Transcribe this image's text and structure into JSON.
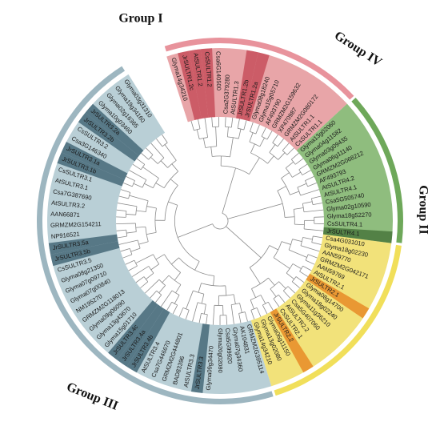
{
  "figure": {
    "colors": {
      "group_I": "#e8a5a8",
      "group_I_dark": "#c9545f",
      "group_I_ring": "#e8939c",
      "group_II": "#f2e27a",
      "group_II_dark": "#e8902b",
      "group_II_ring": "#f1df5a",
      "group_III": "#b9cfd6",
      "group_III_dark": "#4d6e7d",
      "group_III_ring": "#9db6c0",
      "group_IV": "#8fbd7e",
      "group_IV_dark": "#4d7a40",
      "group_IV_ring": "#6ea85a",
      "branch": "#8a8a8a"
    },
    "groups": [
      {
        "label": "Group I",
        "color_key": "group_I"
      },
      {
        "label": "Group IV",
        "color_key": "group_IV"
      },
      {
        "label": "Group II",
        "color_key": "group_II"
      },
      {
        "label": "Group III",
        "color_key": "group_III"
      }
    ],
    "leaves": [
      {
        "label": "Glyma14g34210",
        "group": "I",
        "dark": false
      },
      {
        "label": "JrSULTR1.2c",
        "group": "I",
        "dark": true
      },
      {
        "label": "AtSULTR1.2",
        "group": "I",
        "dark": true
      },
      {
        "label": "CsSULTR1.2",
        "group": "I",
        "dark": true
      },
      {
        "label": "Csa6G140500",
        "group": "I",
        "dark": false
      },
      {
        "label": "Csa2G379280",
        "group": "I",
        "dark": false
      },
      {
        "label": "AtSULTR1.3",
        "group": "I",
        "dark": false
      },
      {
        "label": "JrSULTR1.2b",
        "group": "I",
        "dark": true
      },
      {
        "label": "JrSULTR1.2a",
        "group": "I",
        "dark": true
      },
      {
        "label": "Glyma08g18240",
        "group": "I",
        "dark": false
      },
      {
        "label": "Glyma15g05710",
        "group": "I",
        "dark": false
      },
      {
        "label": "AF493790",
        "group": "I",
        "dark": false
      },
      {
        "label": "GRMZM2G159632",
        "group": "I",
        "dark": false
      },
      {
        "label": "XP470987",
        "group": "I",
        "dark": false
      },
      {
        "label": "GRMZM2G080172",
        "group": "I",
        "dark": false
      },
      {
        "label": "AtSULTR1.1",
        "group": "I",
        "dark": false
      },
      {
        "label": "CsSULTR1.1",
        "group": "I",
        "dark": false
      },
      {
        "label": "Glyma13g02060",
        "group": "IV",
        "dark": false
      },
      {
        "label": "Glyma04g11582",
        "group": "IV",
        "dark": false
      },
      {
        "label": "Glyma03g09435",
        "group": "IV",
        "dark": false
      },
      {
        "label": "Glyma06g11140",
        "group": "IV",
        "dark": false
      },
      {
        "label": "GRMZM2G068212",
        "group": "IV",
        "dark": false
      },
      {
        "label": "AF493793",
        "group": "IV",
        "dark": false
      },
      {
        "label": "AtSULTR4.2",
        "group": "IV",
        "dark": false
      },
      {
        "label": "AtSULTR4.1",
        "group": "IV",
        "dark": false
      },
      {
        "label": "Csa5G505740",
        "group": "IV",
        "dark": false
      },
      {
        "label": "Glyma02g10590",
        "group": "IV",
        "dark": false
      },
      {
        "label": "Glyma18g52270",
        "group": "IV",
        "dark": false
      },
      {
        "label": "CsSULTR4.1",
        "group": "IV",
        "dark": false
      },
      {
        "label": "JrSULTR4.1",
        "group": "IV",
        "dark": true
      },
      {
        "label": "Csa4G031010",
        "group": "II",
        "dark": false
      },
      {
        "label": "Glyma18g02230",
        "group": "II",
        "dark": false
      },
      {
        "label": "AAN59770",
        "group": "II",
        "dark": false
      },
      {
        "label": "GRMZM2G042171",
        "group": "II",
        "dark": false
      },
      {
        "label": "AAN59769",
        "group": "II",
        "dark": false
      },
      {
        "label": "AtSULTR2.1",
        "group": "II",
        "dark": false
      },
      {
        "label": "JrSULTR2.1",
        "group": "II",
        "dark": true
      },
      {
        "label": "Glyma08g14700",
        "group": "II",
        "dark": false
      },
      {
        "label": "Glyma18g02240",
        "group": "II",
        "dark": false
      },
      {
        "label": "Glyma11g36210",
        "group": "II",
        "dark": false
      },
      {
        "label": "Csa5G407060",
        "group": "II",
        "dark": false
      },
      {
        "label": "AtSULTR2.2",
        "group": "II",
        "dark": false
      },
      {
        "label": "CsSULTR2.1",
        "group": "II",
        "dark": false
      },
      {
        "label": "JrSULTR2.2",
        "group": "II",
        "dark": true
      },
      {
        "label": "Glyma06g11150",
        "group": "II",
        "dark": false
      },
      {
        "label": "Glyma13g02080",
        "group": "II",
        "dark": false
      },
      {
        "label": "Glyma14g34210",
        "group": "II",
        "dark": false
      },
      {
        "label": "GRMZM2G395114",
        "group": "III",
        "dark": false
      },
      {
        "label": "AK104831",
        "group": "III",
        "dark": false
      },
      {
        "label": "Glyma07g34360",
        "group": "III",
        "dark": false
      },
      {
        "label": "Csa5G99920",
        "group": "III",
        "dark": false
      },
      {
        "label": "Glyma20g02080",
        "group": "III",
        "dark": false
      },
      {
        "label": "Glyma09g34470",
        "group": "III",
        "dark": false
      },
      {
        "label": "JrSULTR3.3",
        "group": "III",
        "dark": true
      },
      {
        "label": "AtSULTR3.3",
        "group": "III",
        "dark": false
      },
      {
        "label": "BAD83396",
        "group": "III",
        "dark": false
      },
      {
        "label": "GRMZM2G444801",
        "group": "III",
        "dark": false
      },
      {
        "label": "Csa7G446670",
        "group": "III",
        "dark": false
      },
      {
        "label": "AtSULTR3.4",
        "group": "III",
        "dark": false
      },
      {
        "label": "JrSULTR3.4b",
        "group": "III",
        "dark": true
      },
      {
        "label": "JrSULTR3.4a",
        "group": "III",
        "dark": true
      },
      {
        "label": "JrSULTR3.4c",
        "group": "III",
        "dark": true
      },
      {
        "label": "Glyma15g01710",
        "group": "III",
        "dark": false
      },
      {
        "label": "Glyma13g43670",
        "group": "III",
        "dark": false
      },
      {
        "label": "Glyma09g06090",
        "group": "III",
        "dark": false
      },
      {
        "label": "GRMZM2G118013",
        "group": "III",
        "dark": false
      },
      {
        "label": "NM195270",
        "group": "III",
        "dark": false
      },
      {
        "label": "Glyma07g00840",
        "group": "III",
        "dark": false
      },
      {
        "label": "Glyma07g09710",
        "group": "III",
        "dark": false
      },
      {
        "label": "Glyma08g21350",
        "group": "III",
        "dark": false
      },
      {
        "label": "CsSULTR3.5",
        "group": "III",
        "dark": false
      },
      {
        "label": "JrSULTR3.5b",
        "group": "III",
        "dark": true
      },
      {
        "label": "JrSULTR3.5a",
        "group": "III",
        "dark": true
      },
      {
        "label": "NP916521",
        "group": "III",
        "dark": false
      },
      {
        "label": "GRMZM2G154211",
        "group": "III",
        "dark": false
      },
      {
        "label": "AAN66871",
        "group": "III",
        "dark": false
      },
      {
        "label": "AtSULTR3.2",
        "group": "III",
        "dark": false
      },
      {
        "label": "Csa7G387690",
        "group": "III",
        "dark": false
      },
      {
        "label": "AtSULTR3.1",
        "group": "III",
        "dark": false
      },
      {
        "label": "CsSULTR3.1",
        "group": "III",
        "dark": false
      },
      {
        "label": "JrSULTR3.1b",
        "group": "III",
        "dark": true
      },
      {
        "label": "JrSULTR3.1a",
        "group": "III",
        "dark": true
      },
      {
        "label": "Csa3G146340",
        "group": "III",
        "dark": false
      },
      {
        "label": "CsSULTR3.2",
        "group": "III",
        "dark": false
      },
      {
        "label": "JrSULTR3.2b",
        "group": "III",
        "dark": true
      },
      {
        "label": "JrSULTR3.2a",
        "group": "III",
        "dark": true
      },
      {
        "label": "Glyma10g03460",
        "group": "III",
        "dark": false
      },
      {
        "label": "Glyma02g16365",
        "group": "III",
        "dark": false
      },
      {
        "label": "Glyma19g34160",
        "group": "III",
        "dark": false
      },
      {
        "label": "Glyma03g31310",
        "group": "III",
        "dark": false
      }
    ]
  }
}
